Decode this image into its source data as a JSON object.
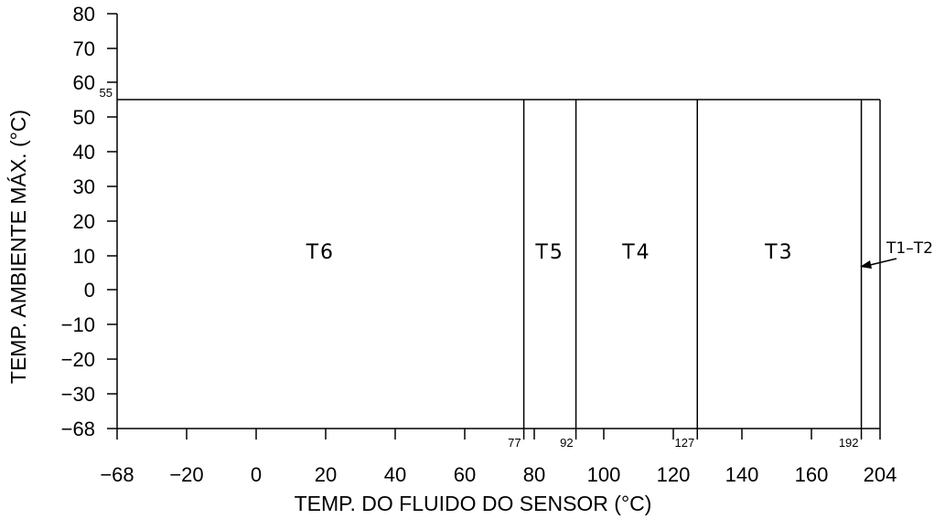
{
  "chart_data": {
    "type": "area",
    "xlabel": "TEMP. DO FLUIDO DO SENSOR (°C)",
    "ylabel": "TEMP. AMBIENTE MÁX. (°C)",
    "x_ticks": [
      {
        "value": -68,
        "label": "−68"
      },
      {
        "value": -20,
        "label": "−20"
      },
      {
        "value": 0,
        "label": "0"
      },
      {
        "value": 20,
        "label": "20"
      },
      {
        "value": 40,
        "label": "40"
      },
      {
        "value": 60,
        "label": "60"
      },
      {
        "value": 80,
        "label": "80"
      },
      {
        "value": 100,
        "label": "100"
      },
      {
        "value": 120,
        "label": "120"
      },
      {
        "value": 140,
        "label": "140"
      },
      {
        "value": 160,
        "label": "160"
      },
      {
        "value": 204,
        "label": "204"
      }
    ],
    "y_ticks": [
      {
        "value": 80,
        "label": "80"
      },
      {
        "value": 70,
        "label": "70"
      },
      {
        "value": 60,
        "label": "60"
      },
      {
        "value": 50,
        "label": "50"
      },
      {
        "value": 40,
        "label": "40"
      },
      {
        "value": 30,
        "label": "30"
      },
      {
        "value": 20,
        "label": "20"
      },
      {
        "value": 10,
        "label": "10"
      },
      {
        "value": 0,
        "label": "0"
      },
      {
        "value": -10,
        "label": "−10"
      },
      {
        "value": -20,
        "label": "−20"
      },
      {
        "value": -30,
        "label": "−30"
      },
      {
        "value": -68,
        "label": "−68"
      }
    ],
    "max_ambient": {
      "value": 55,
      "label": "55"
    },
    "boundaries": [
      {
        "value": 77,
        "label": "77"
      },
      {
        "value": 92,
        "label": "92"
      },
      {
        "value": 127,
        "label": "127"
      },
      {
        "value": 192,
        "label": "192"
      }
    ],
    "zones": [
      {
        "name": "T6",
        "x_from": -68,
        "x_to": 77,
        "y_max": 55
      },
      {
        "name": "T5",
        "x_from": 77,
        "x_to": 92,
        "y_max": 55
      },
      {
        "name": "T4",
        "x_from": 92,
        "x_to": 127,
        "y_max": 55
      },
      {
        "name": "T3",
        "x_from": 127,
        "x_to": 192,
        "y_max": 55
      },
      {
        "name": "T1–T2",
        "x_from": 192,
        "x_to": 204,
        "y_max": 55
      }
    ],
    "grid": false
  }
}
